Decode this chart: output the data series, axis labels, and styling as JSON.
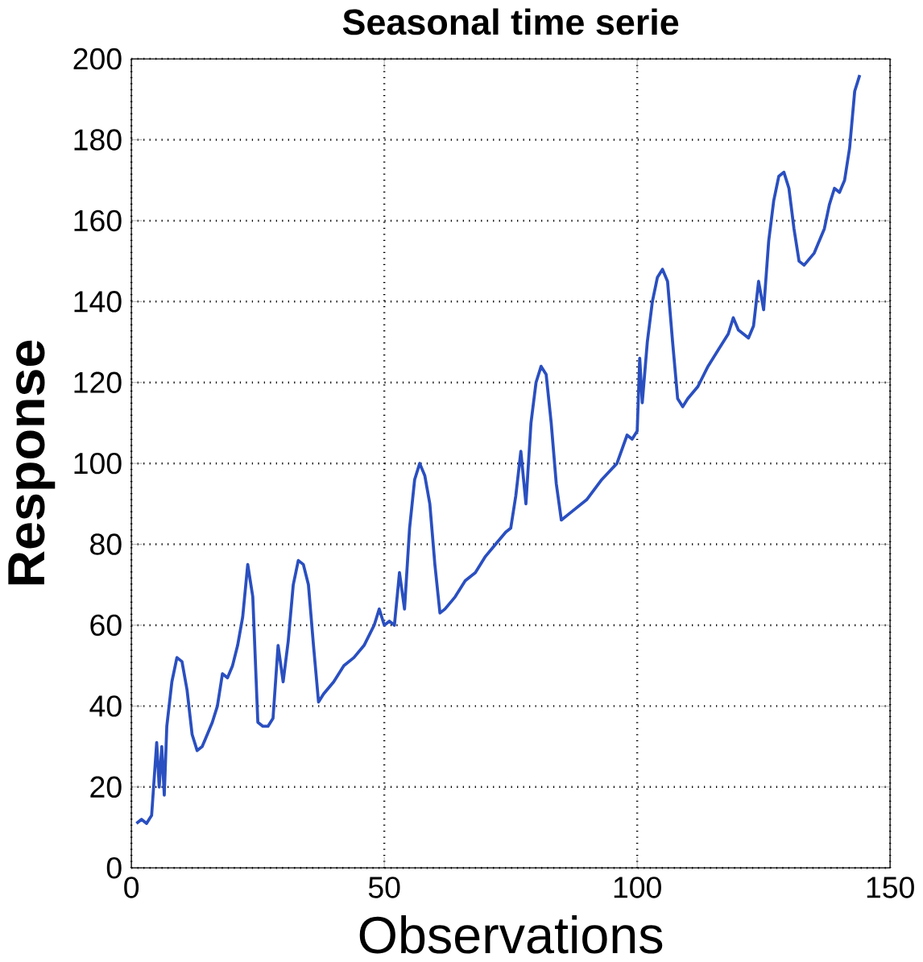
{
  "chart_data": {
    "type": "line",
    "title": "Seasonal time serie",
    "xlabel": "Observations",
    "ylabel": "Response",
    "xlim": [
      0,
      150
    ],
    "ylim": [
      0,
      200
    ],
    "xticks": [
      0,
      50,
      100,
      150
    ],
    "yticks": [
      0,
      20,
      40,
      60,
      80,
      100,
      120,
      140,
      160,
      180,
      200
    ],
    "grid": true,
    "line_style": "solid",
    "series": [
      {
        "color": "#2a4fc0",
        "x": [
          1,
          2,
          3,
          4,
          5,
          5.5,
          6,
          6.5,
          7,
          8,
          9,
          10,
          11,
          12,
          13,
          14,
          16,
          17,
          18,
          19,
          20,
          21,
          22,
          23,
          24,
          25,
          26,
          27,
          28,
          29,
          30,
          31,
          32,
          33,
          34,
          35,
          36,
          37,
          38,
          40,
          42,
          44,
          46,
          48,
          49,
          50,
          51,
          52,
          53,
          54,
          55,
          56,
          57,
          58,
          59,
          60,
          61,
          62,
          64,
          66,
          68,
          70,
          72,
          74,
          75,
          76,
          77,
          78,
          79,
          80,
          81,
          82,
          83,
          84,
          85,
          87,
          90,
          93,
          96,
          98,
          99,
          100,
          100.5,
          101,
          102,
          103,
          104,
          105,
          106,
          107,
          108,
          109,
          110,
          112,
          114,
          116,
          118,
          119,
          120,
          122,
          123,
          124,
          125,
          126,
          127,
          128,
          129,
          130,
          131,
          132,
          133,
          135,
          137,
          138,
          139,
          140,
          141,
          142,
          143,
          144
        ],
        "values": [
          11,
          12,
          11,
          13,
          31,
          20,
          30,
          18,
          35,
          46,
          52,
          51,
          44,
          33,
          29,
          30,
          36,
          40,
          48,
          47,
          50,
          55,
          62,
          75,
          67,
          36,
          35,
          35,
          37,
          55,
          46,
          56,
          70,
          76,
          75,
          70,
          55,
          41,
          43,
          46,
          50,
          52,
          55,
          60,
          64,
          60,
          61,
          60,
          73,
          64,
          84,
          96,
          100,
          97,
          90,
          75,
          63,
          64,
          67,
          71,
          73,
          77,
          80,
          83,
          84,
          92,
          103,
          90,
          110,
          120,
          124,
          122,
          110,
          95,
          86,
          88,
          91,
          96,
          100,
          107,
          106,
          108,
          126,
          115,
          130,
          140,
          146,
          148,
          145,
          130,
          116,
          114,
          116,
          119,
          124,
          128,
          132,
          136,
          133,
          131,
          134,
          145,
          138,
          155,
          165,
          171,
          172,
          168,
          158,
          150,
          149,
          152,
          158,
          164,
          168,
          167,
          170,
          178,
          192,
          196
        ]
      }
    ]
  }
}
